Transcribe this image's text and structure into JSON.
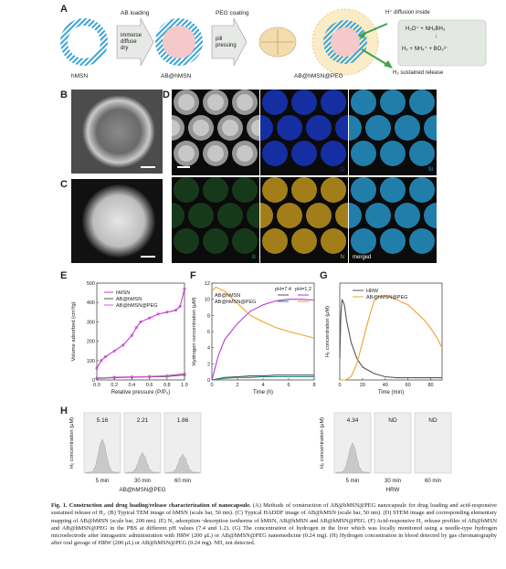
{
  "panel_labels": [
    "A",
    "B",
    "C",
    "D",
    "E",
    "F",
    "G",
    "H"
  ],
  "panel_a": {
    "step1_label": "AB loading",
    "step1_box": [
      "immerse",
      "diffuse",
      "dry"
    ],
    "step2_label": "PEG coating",
    "step2_box": [
      "pill",
      "pressing"
    ],
    "particle1": "hMSN",
    "particle2": "AB@hMSN",
    "particle3": "AB@hMSN@PEG",
    "diffusion_text": "H⁺ diffusion inside",
    "reaction_line1": "H₃O⁺ + NH₃BH₃",
    "reaction_arrow": "↓",
    "reaction_line2": "H₂ + NH₄⁺ + BO₃³⁻",
    "release_text": "H₂ sustained release",
    "colors": {
      "stripe": "#3aa3d8",
      "pink": "#f5c9c9",
      "box": "#e3e8e3",
      "green": "#3fa34d",
      "peg": "#f3dcae"
    }
  },
  "panel_d": {
    "tiles": [
      "",
      "O",
      "Si",
      "B",
      "N",
      "merged"
    ],
    "tile_colors": [
      "#9a9a9a",
      "#1a3bd6",
      "#2aa6e0",
      "#2f8f3a",
      "#d6a520",
      "#2aa6e0"
    ]
  },
  "chart_e": {
    "type": "line",
    "ylabel": "Volume adsorbed (cm³/g)",
    "xlabel": "Relative pressure (P/P₀)",
    "xticks": [
      "0.0",
      "0.2",
      "0.4",
      "0.6",
      "0.8",
      "1.0"
    ],
    "yticks": [
      "0",
      "100",
      "200",
      "300",
      "400",
      "500"
    ],
    "xlim": [
      0,
      1.0
    ],
    "ylim": [
      0,
      500
    ],
    "series": [
      {
        "name": "hMSN",
        "color": "#c43ad6",
        "x": [
          0.0,
          0.05,
          0.1,
          0.2,
          0.3,
          0.4,
          0.45,
          0.5,
          0.6,
          0.7,
          0.8,
          0.9,
          0.95,
          1.0
        ],
        "y": [
          60,
          100,
          120,
          150,
          180,
          230,
          270,
          300,
          320,
          340,
          350,
          360,
          380,
          470
        ]
      },
      {
        "name": "AB@hMSN",
        "color": "#555555",
        "x": [
          0.0,
          0.2,
          0.4,
          0.6,
          0.8,
          1.0
        ],
        "y": [
          8,
          12,
          14,
          16,
          18,
          26
        ]
      },
      {
        "name": "AB@hMSN@PEG",
        "color": "#d65ad6",
        "x": [
          0.0,
          0.2,
          0.4,
          0.6,
          0.8,
          1.0
        ],
        "y": [
          10,
          14,
          16,
          18,
          22,
          32
        ]
      }
    ]
  },
  "chart_f": {
    "type": "line",
    "ylabel": "Hydrogen concentration (μM)",
    "xlabel": "Time (h)",
    "xticks": [
      "0",
      "2",
      "4",
      "6",
      "8"
    ],
    "yticks": [
      "0",
      "2",
      "4",
      "6",
      "8",
      "10",
      "12"
    ],
    "xlim": [
      0,
      8
    ],
    "ylim": [
      0,
      12
    ],
    "legend_header": [
      "pH=7.4",
      "pH=1.2"
    ],
    "series": [
      {
        "name": "AB@hMSN",
        "ph": "7.4",
        "color": "#555555",
        "x": [
          0,
          1,
          2,
          3,
          4,
          5,
          6,
          7,
          8
        ],
        "y": [
          0,
          0.3,
          0.4,
          0.5,
          0.5,
          0.6,
          0.6,
          0.6,
          0.6
        ]
      },
      {
        "name": "AB@hMSN",
        "ph": "1.2",
        "color": "#b23ad6",
        "x": [
          0,
          0.5,
          1,
          2,
          3,
          4,
          5,
          6,
          7,
          8
        ],
        "y": [
          0,
          3,
          5,
          7,
          8.5,
          9.3,
          9.8,
          10,
          10,
          9.9
        ]
      },
      {
        "name": "AB@hMSN@PEG",
        "ph": "7.4",
        "color": "#2a8a8a",
        "x": [
          0,
          1,
          2,
          3,
          4,
          5,
          6,
          7,
          8
        ],
        "y": [
          0,
          0.2,
          0.3,
          0.3,
          0.4,
          0.4,
          0.4,
          0.4,
          0.4
        ]
      },
      {
        "name": "AB@hMSN@PEG",
        "ph": "1.2",
        "color": "#f0a030",
        "x": [
          0,
          0.3,
          1,
          2,
          3,
          4,
          5,
          6,
          7,
          8
        ],
        "y": [
          11,
          11.5,
          11,
          9.5,
          8,
          7.2,
          6.5,
          6,
          5.6,
          5.2
        ]
      }
    ]
  },
  "chart_g": {
    "type": "line",
    "ylabel": "H₂ concentration (μM)",
    "xlabel": "Time (min)",
    "xticks": [
      "0",
      "20",
      "40",
      "60",
      "80"
    ],
    "xlim": [
      0,
      90
    ],
    "ylim": [
      0,
      9
    ],
    "series": [
      {
        "name": "HRW",
        "color": "#555555",
        "x": [
          0,
          1,
          2,
          4,
          6,
          10,
          15,
          20,
          30,
          40,
          50,
          60,
          70,
          80,
          90
        ],
        "y": [
          2,
          6,
          7.5,
          7,
          5.5,
          3.5,
          2,
          1.2,
          0.6,
          0.3,
          0.2,
          0.2,
          0.2,
          0.2,
          0.2
        ]
      },
      {
        "name": "AB@hMSN@PEG",
        "color": "#f0a030",
        "x": [
          0,
          5,
          10,
          15,
          20,
          25,
          30,
          35,
          40,
          45,
          50,
          55,
          60,
          65,
          70,
          75,
          80,
          85,
          90
        ],
        "y": [
          0,
          0,
          0.3,
          1.5,
          3.5,
          5.5,
          7.3,
          7.8,
          7.8,
          7.7,
          7.5,
          7.2,
          7,
          6.5,
          6,
          5.5,
          4.8,
          4,
          3
        ]
      }
    ]
  },
  "chart_h": {
    "type": "bar",
    "ylabel": "H₂ concentration (μM)",
    "left_group": {
      "title": "AB@hMSN@PEG",
      "categories": [
        "5 min",
        "30 min",
        "60 min"
      ],
      "values_label": [
        "5.16",
        "2.21",
        "1.86"
      ]
    },
    "right_group": {
      "title": "HRW",
      "categories": [
        "5 min",
        "30 min",
        "60 min"
      ],
      "values_label": [
        "4.34",
        "ND",
        "ND"
      ]
    }
  },
  "caption": {
    "title": "Fig. 1. Construction and drug loading/release characterization of nanocapsule.",
    "body": " (A) Methods of construction of AB@hMSN@PEG nanocapsule for drug loading and acid-responsive sustained release of H₂. (B) Typical TEM image of hMSN (scale bar, 50 nm). (C) Typical HADDF image of AB@hMSN (scale bar, 50 nm). (D) STEM image and corresponding elementary mapping of AB@hMSN (scale bar, 200 nm). (E) N₂ adsorption−desorption isotherms of hMSN, AB@hMSN and AB@hMSN@PEG. (F) Acid-responsive H₂ release profiles of AB@hMSN and AB@hMSN@PEG in the PBS at different pH values (7.4 and 1.2). (G) The concentration of hydrogen in the liver which was locally monitored using a needle-type hydrogen microelectrode after intragastric administration with HRW (200 μL) or AB@hMSN@PEG nanomedicine (0.24 mg). (H) Hydrogen concentration in blood detected by gas chromatography after oral gavage of HRW (200 μL) or AB@hMSN@PEG (0.24 mg). ND, not detected."
  }
}
